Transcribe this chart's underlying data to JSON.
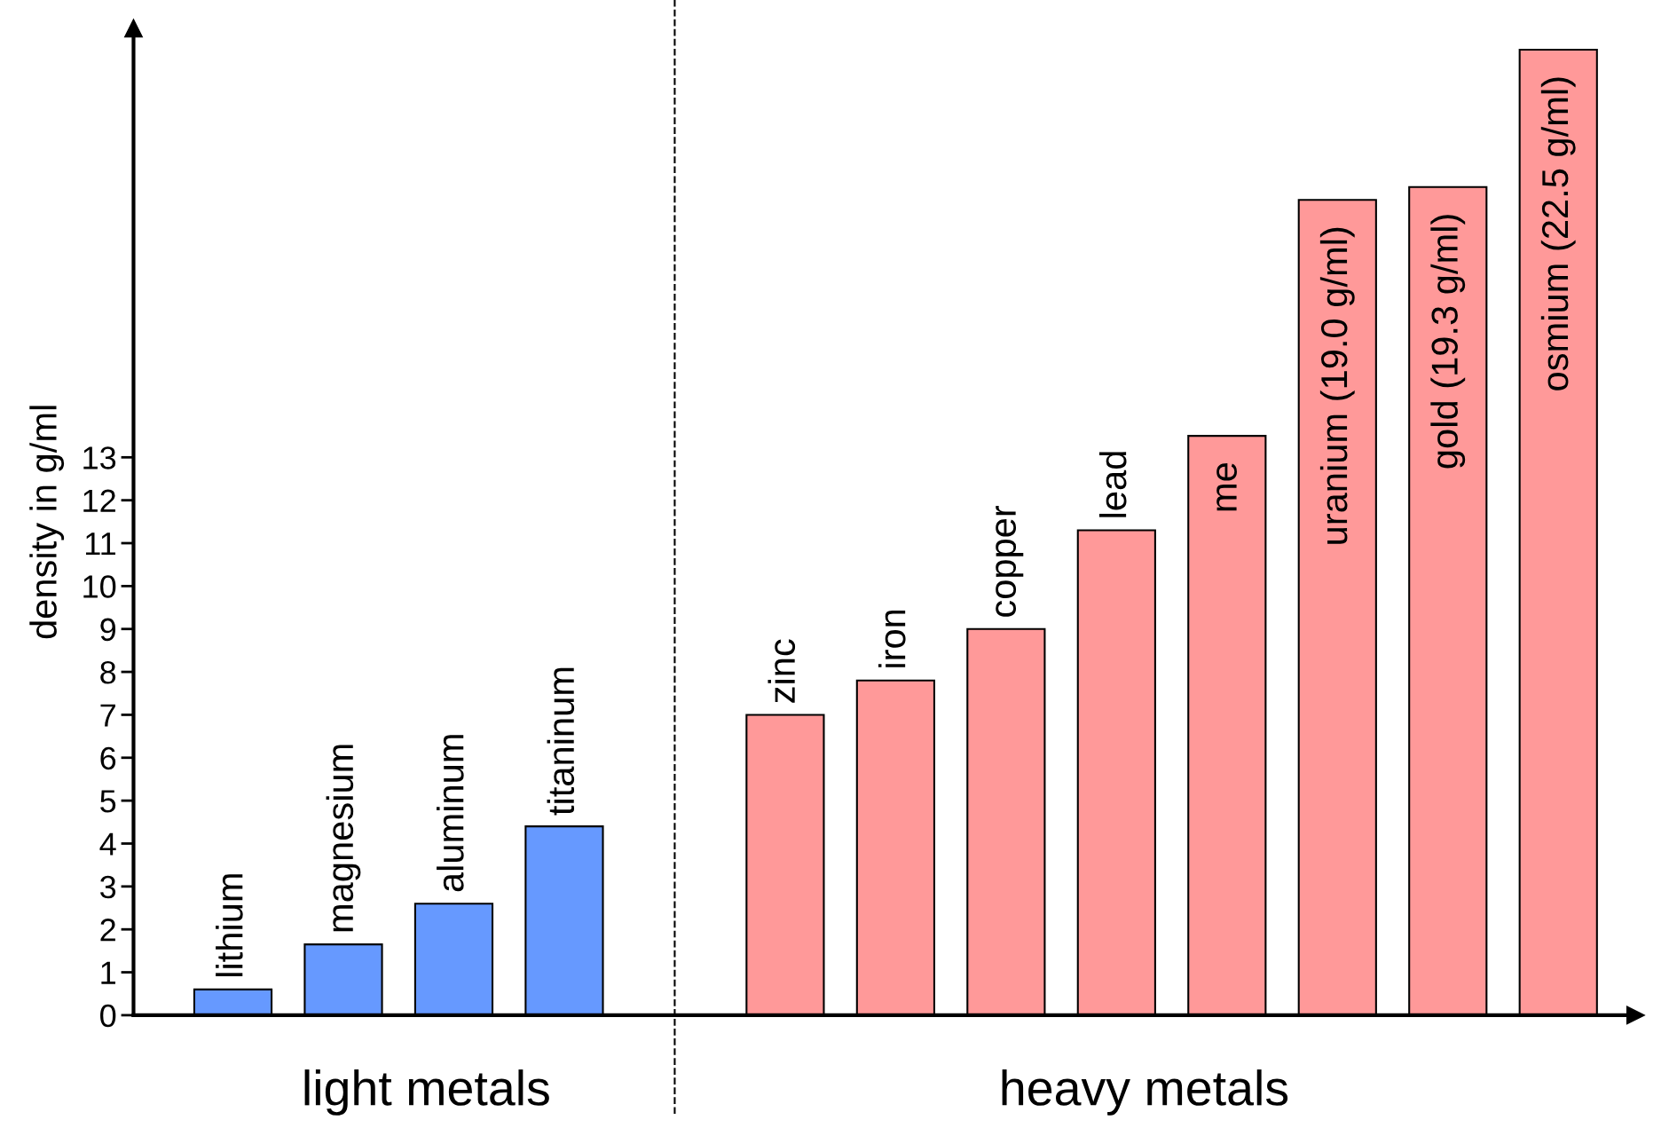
{
  "chart_data": {
    "type": "bar",
    "ylabel": "density in g/ml",
    "categories": [
      "lithium",
      "magnesium",
      "aluminum",
      "titaninum",
      null,
      "zinc",
      "iron",
      "copper",
      "lead",
      "me",
      "uranium (19.0 g/ml)",
      "gold (19.3 g/ml)",
      "osmium (22.5 g/ml)"
    ],
    "values": [
      0.6,
      1.65,
      2.6,
      4.4,
      null,
      7.0,
      7.8,
      9.0,
      11.3,
      13.5,
      19.0,
      19.3,
      22.5
    ],
    "colors": [
      "#6699ff",
      "#6699ff",
      "#6699ff",
      "#6699ff",
      null,
      "#ff9999",
      "#ff9999",
      "#ff9999",
      "#ff9999",
      "#ff9999",
      "#ff9999",
      "#ff9999",
      "#ff9999"
    ],
    "ylim": [
      0,
      23
    ],
    "yticks": [
      0,
      1,
      2,
      3,
      4,
      5,
      6,
      7,
      8,
      9,
      10,
      11,
      12,
      13
    ],
    "annotations": [
      "light metals",
      "heavy metals"
    ],
    "legend": false
  }
}
